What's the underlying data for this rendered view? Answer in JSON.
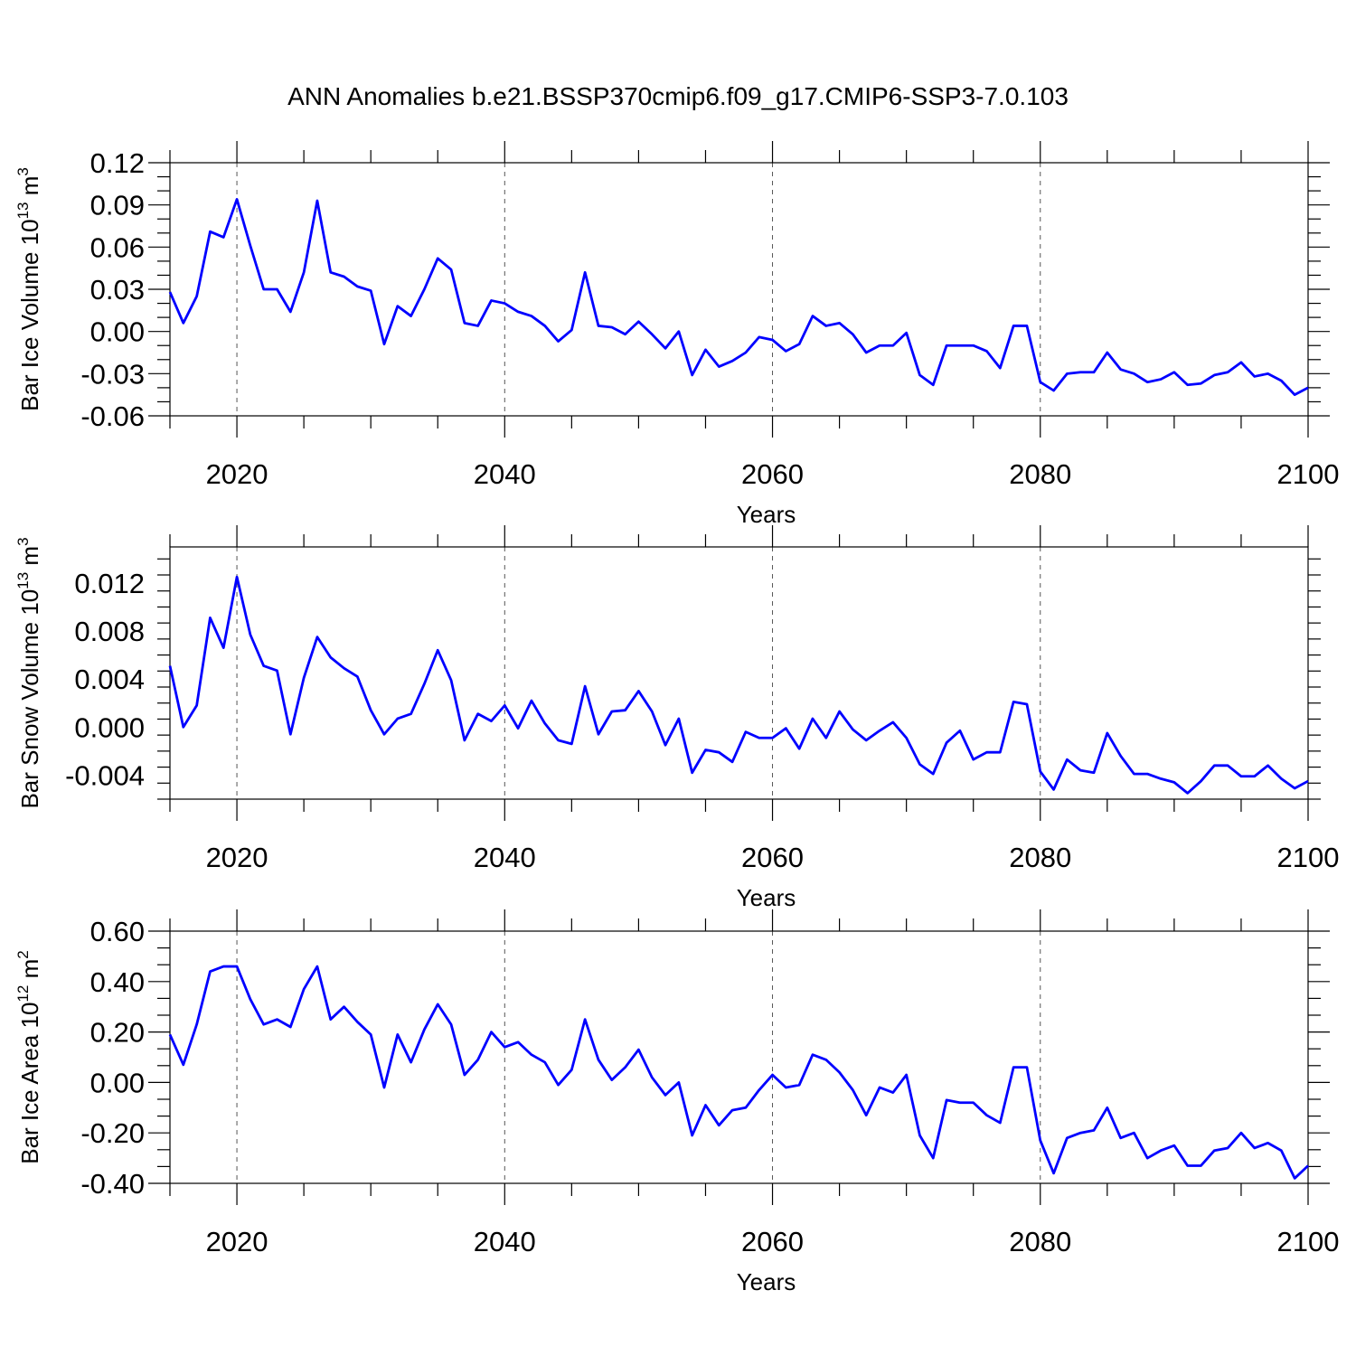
{
  "title": "ANN Anomalies b.e21.BSSP370cmip6.f09_g17.CMIP6-SSP3-7.0.103",
  "chart_data": [
    {
      "type": "line",
      "ylabel": "Bar Ice Volume 10^13 m^3",
      "ylabel_parts": {
        "base": "Bar Ice Volume 10",
        "exp1": "13",
        "unit": " m",
        "exp2": "3"
      },
      "xlabel": "Years",
      "xlim": [
        2015,
        2100
      ],
      "ylim": [
        -0.06,
        0.12
      ],
      "xticks": [
        2020,
        2040,
        2060,
        2080,
        2100
      ],
      "yticks": [
        -0.06,
        -0.03,
        0.0,
        0.03,
        0.06,
        0.09,
        0.12
      ],
      "ytick_labels": [
        "-0.06",
        "-0.03",
        "0.00",
        "0.03",
        "0.06",
        "0.09",
        "0.12"
      ],
      "grid": "vertical-dashed",
      "color": "#0000ff",
      "x_start": 2015,
      "values": [
        0.028,
        0.006,
        0.025,
        0.071,
        0.067,
        0.094,
        0.061,
        0.03,
        0.03,
        0.014,
        0.042,
        0.093,
        0.042,
        0.039,
        0.032,
        0.029,
        -0.009,
        0.018,
        0.011,
        0.03,
        0.052,
        0.044,
        0.006,
        0.004,
        0.022,
        0.02,
        0.014,
        0.011,
        0.004,
        -0.007,
        0.001,
        0.042,
        0.004,
        0.003,
        -0.002,
        0.007,
        -0.002,
        -0.012,
        0.0,
        -0.031,
        -0.013,
        -0.025,
        -0.021,
        -0.015,
        -0.004,
        -0.006,
        -0.014,
        -0.009,
        0.011,
        0.004,
        0.006,
        -0.002,
        -0.015,
        -0.01,
        -0.01,
        -0.001,
        -0.031,
        -0.038,
        -0.01,
        -0.01,
        -0.01,
        -0.014,
        -0.026,
        0.004,
        0.004,
        -0.036,
        -0.042,
        -0.03,
        -0.029,
        -0.029,
        -0.015,
        -0.027,
        -0.03,
        -0.036,
        -0.034,
        -0.029,
        -0.038,
        -0.037,
        -0.031,
        -0.029,
        -0.022,
        -0.032,
        -0.03,
        -0.035,
        -0.045,
        -0.04
      ]
    },
    {
      "type": "line",
      "ylabel": "Bar Snow Volume 10^13 m^3",
      "ylabel_parts": {
        "base": "Bar Snow Volume 10",
        "exp1": "13",
        "unit": " m",
        "exp2": "3"
      },
      "xlabel": "Years",
      "xlim": [
        2015,
        2100
      ],
      "ylim": [
        -0.006,
        0.015
      ],
      "xticks": [
        2020,
        2040,
        2060,
        2080,
        2100
      ],
      "yticks": [
        -0.004,
        0.0,
        0.004,
        0.008,
        0.012
      ],
      "ytick_labels": [
        "-0.004",
        "0.000",
        "0.004",
        "0.008",
        "0.012"
      ],
      "grid": "vertical-dashed",
      "color": "#0000ff",
      "x_start": 2015,
      "values": [
        0.0051,
        0.0,
        0.0018,
        0.0091,
        0.0066,
        0.0125,
        0.0077,
        0.0051,
        0.0047,
        -0.0006,
        0.0041,
        0.0075,
        0.0058,
        0.0049,
        0.0042,
        0.0014,
        -0.0006,
        0.0007,
        0.0011,
        0.0036,
        0.0064,
        0.0039,
        -0.0011,
        0.0011,
        0.0005,
        0.0018,
        -0.0001,
        0.0022,
        0.0003,
        -0.0011,
        -0.0014,
        0.0034,
        -0.0006,
        0.0013,
        0.0014,
        0.003,
        0.0013,
        -0.0015,
        0.0007,
        -0.0038,
        -0.0019,
        -0.0021,
        -0.0029,
        -0.0004,
        -0.0009,
        -0.0009,
        -0.0001,
        -0.0018,
        0.0007,
        -0.0009,
        0.0013,
        -0.0002,
        -0.0011,
        -0.0003,
        0.0004,
        -0.0009,
        -0.0031,
        -0.0039,
        -0.0013,
        -0.0003,
        -0.0027,
        -0.0021,
        -0.0021,
        0.0021,
        0.0019,
        -0.0037,
        -0.0052,
        -0.0027,
        -0.0036,
        -0.0038,
        -0.0005,
        -0.0024,
        -0.0039,
        -0.0039,
        -0.0043,
        -0.0046,
        -0.0055,
        -0.0045,
        -0.0032,
        -0.0032,
        -0.0041,
        -0.0041,
        -0.0032,
        -0.0043,
        -0.0051,
        -0.0045
      ]
    },
    {
      "type": "line",
      "ylabel": "Bar Ice Area 10^12 m^2",
      "ylabel_parts": {
        "base": "Bar Ice Area 10",
        "exp1": "12",
        "unit": " m",
        "exp2": "2"
      },
      "xlabel": "Years",
      "xlim": [
        2015,
        2100
      ],
      "ylim": [
        -0.4,
        0.6
      ],
      "xticks": [
        2020,
        2040,
        2060,
        2080,
        2100
      ],
      "yticks": [
        -0.4,
        -0.2,
        0.0,
        0.2,
        0.4,
        0.6
      ],
      "ytick_labels": [
        "-0.40",
        "-0.20",
        "0.00",
        "0.20",
        "0.40",
        "0.60"
      ],
      "grid": "vertical-dashed",
      "color": "#0000ff",
      "x_start": 2015,
      "values": [
        0.19,
        0.07,
        0.23,
        0.44,
        0.46,
        0.46,
        0.33,
        0.23,
        0.25,
        0.22,
        0.37,
        0.46,
        0.25,
        0.3,
        0.24,
        0.19,
        -0.02,
        0.19,
        0.08,
        0.21,
        0.31,
        0.23,
        0.03,
        0.09,
        0.2,
        0.14,
        0.16,
        0.11,
        0.08,
        -0.01,
        0.05,
        0.25,
        0.09,
        0.01,
        0.06,
        0.13,
        0.02,
        -0.05,
        0.0,
        -0.21,
        -0.09,
        -0.17,
        -0.11,
        -0.1,
        -0.03,
        0.03,
        -0.02,
        -0.01,
        0.11,
        0.09,
        0.04,
        -0.03,
        -0.13,
        -0.02,
        -0.04,
        0.03,
        -0.21,
        -0.3,
        -0.07,
        -0.08,
        -0.08,
        -0.13,
        -0.16,
        0.06,
        0.06,
        -0.23,
        -0.36,
        -0.22,
        -0.2,
        -0.19,
        -0.1,
        -0.22,
        -0.2,
        -0.3,
        -0.27,
        -0.25,
        -0.33,
        -0.33,
        -0.27,
        -0.26,
        -0.2,
        -0.26,
        -0.24,
        -0.27,
        -0.38,
        -0.33
      ]
    }
  ]
}
